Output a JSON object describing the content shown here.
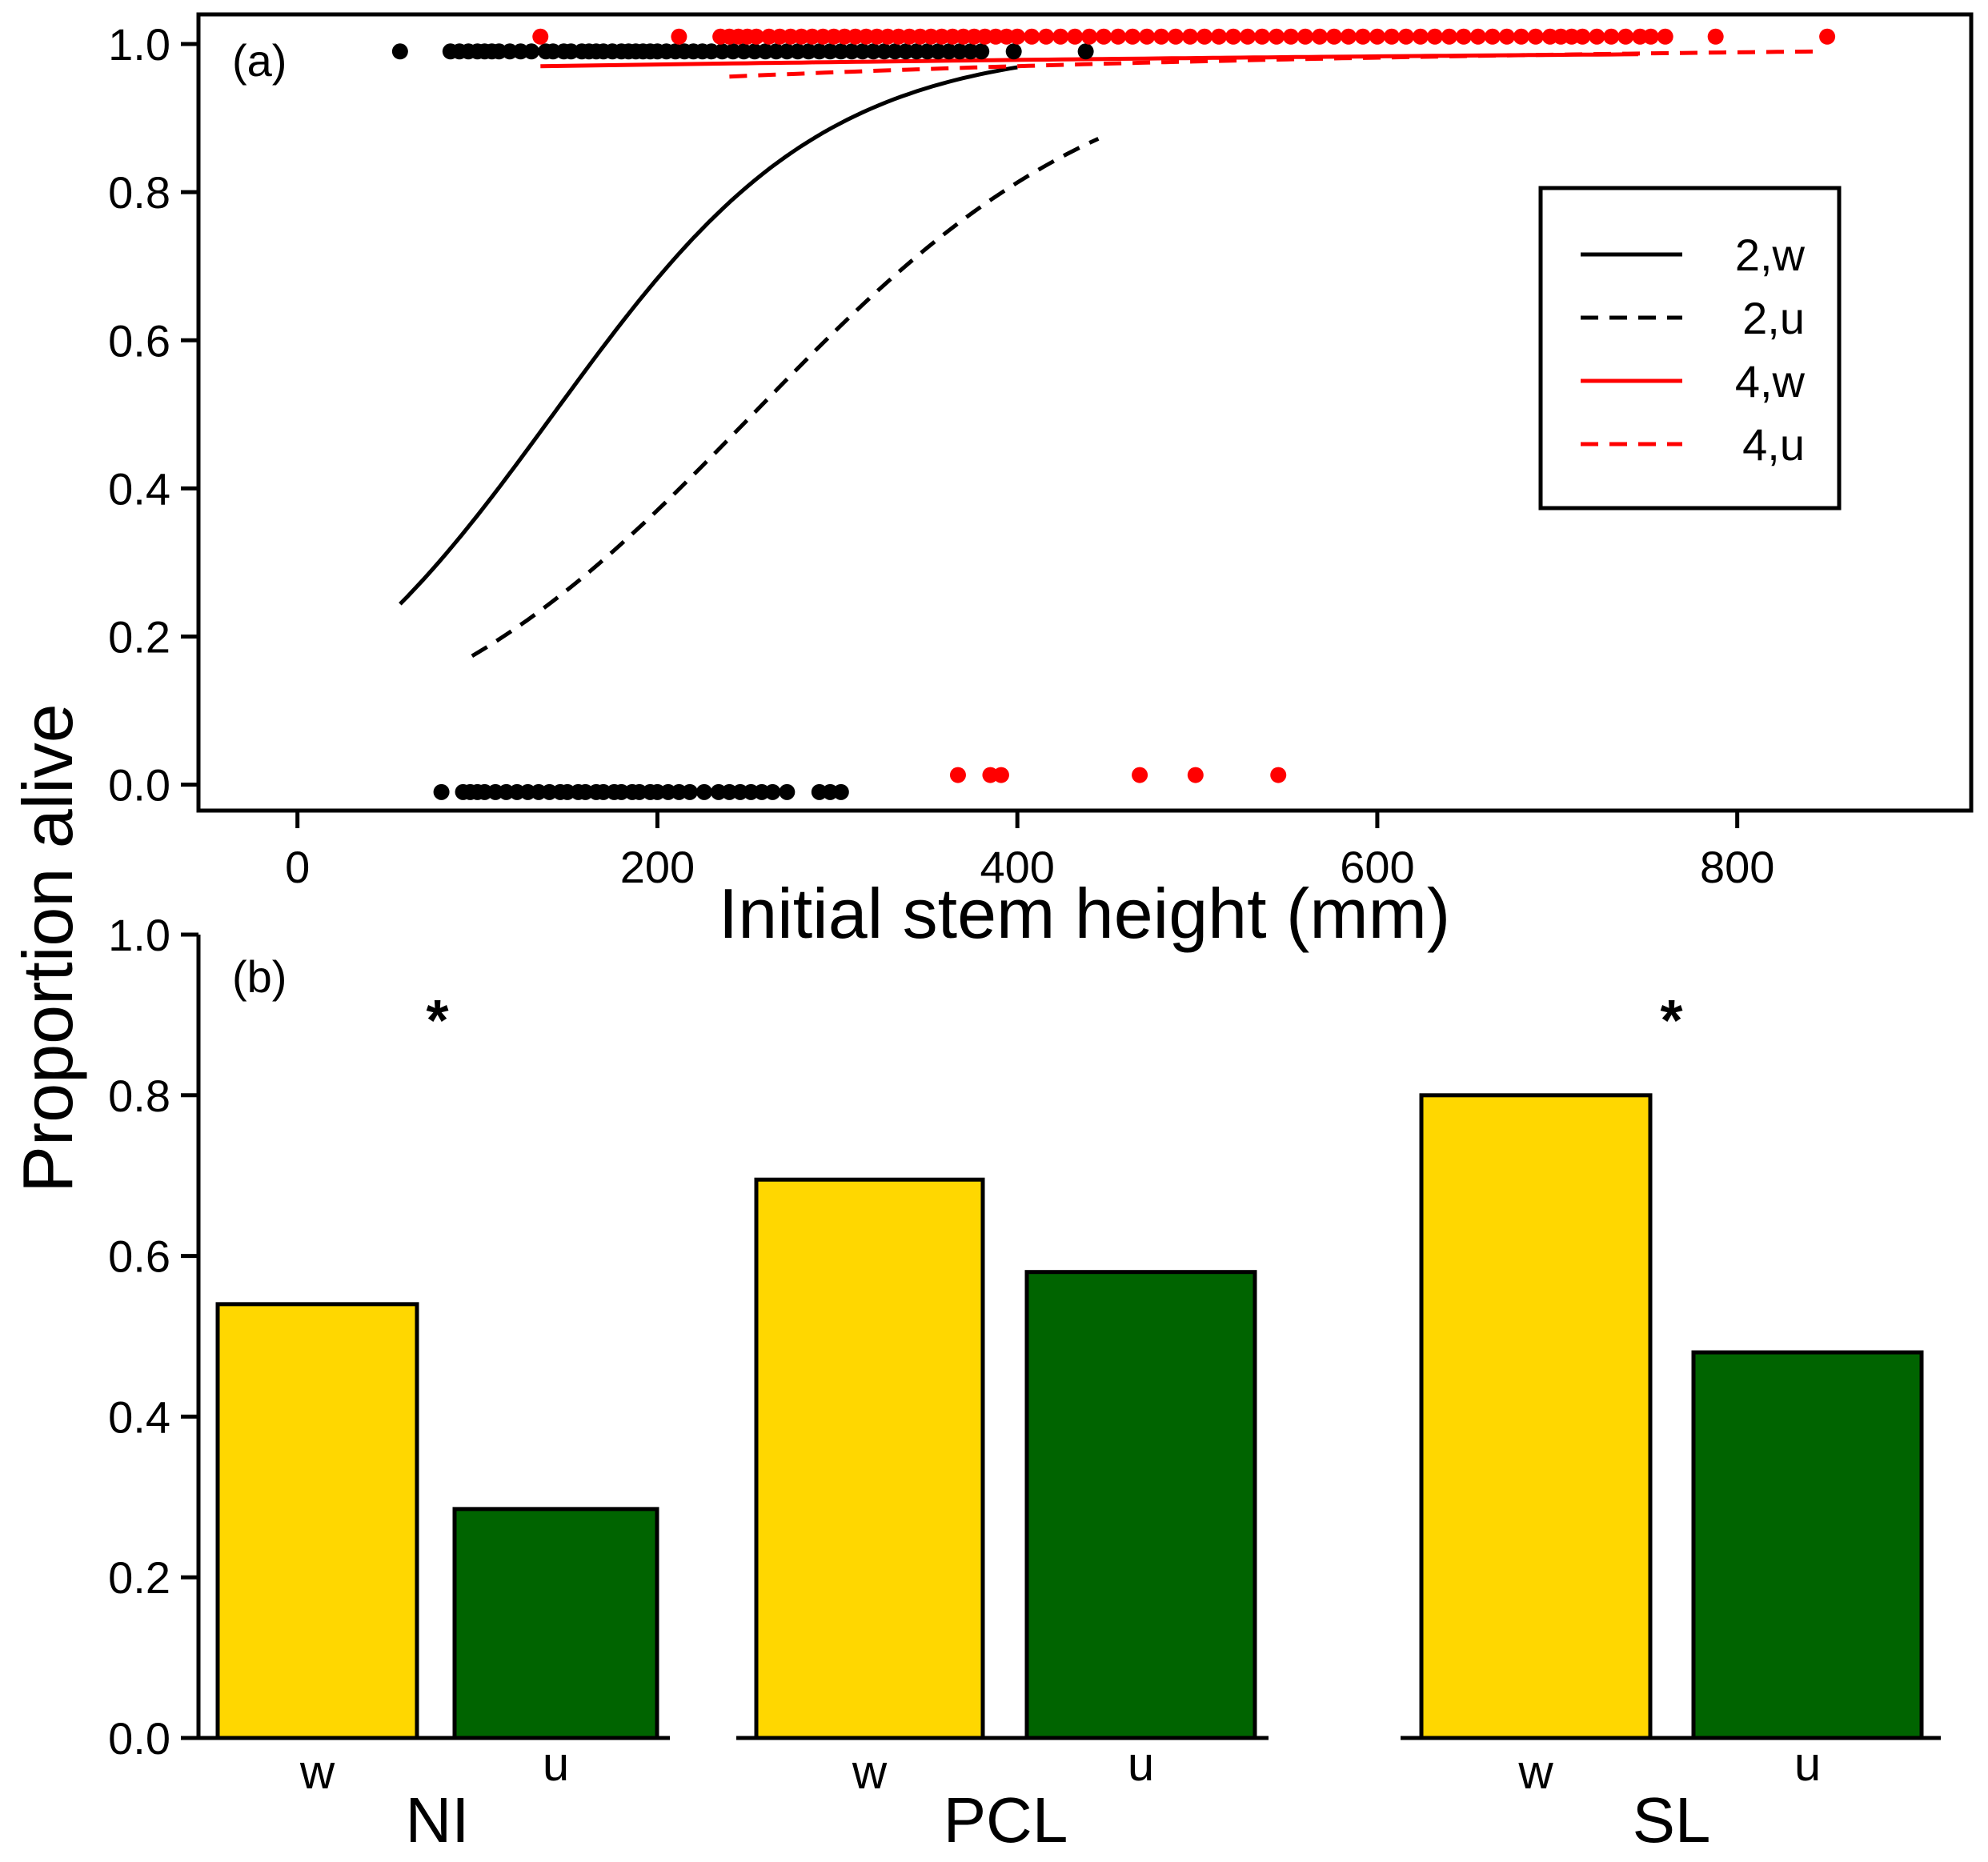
{
  "colors": {
    "black": "#000000",
    "red": "#ff0000",
    "yellow": "#ffd700",
    "green": "#006400"
  },
  "y_axis_title": "Proportion alive",
  "chart_data": [
    {
      "id": "a",
      "panel_label": "(a)",
      "type": "line",
      "xlabel": "Initial stem height (mm)",
      "ylabel": "Proportion alive",
      "xlim": [
        -55,
        930
      ],
      "ylim": [
        -0.035,
        1.04
      ],
      "x_ticks": [
        0,
        200,
        400,
        600,
        800
      ],
      "y_ticks": [
        0.0,
        0.2,
        0.4,
        0.6,
        0.8,
        1.0
      ],
      "x_tick_labels": [
        "0",
        "200",
        "400",
        "600",
        "800"
      ],
      "y_tick_labels": [
        "0.0",
        "0.2",
        "0.4",
        "0.6",
        "0.8",
        "1.0"
      ],
      "legend_position": "right",
      "legend": [
        {
          "label": "2,w",
          "color": "#000000",
          "dash": false
        },
        {
          "label": "2,u",
          "color": "#000000",
          "dash": true
        },
        {
          "label": "4,w",
          "color": "#ff0000",
          "dash": false
        },
        {
          "label": "4,u",
          "color": "#ff0000",
          "dash": true
        }
      ],
      "curves": [
        {
          "name": "2,w",
          "color": "#000000",
          "dash": false,
          "x_range": [
            57,
            400
          ],
          "intercept": -1.89,
          "slope": 0.0133
        },
        {
          "name": "2,u",
          "color": "#000000",
          "dash": true,
          "x_range": [
            97,
            445
          ],
          "intercept": -2.53,
          "slope": 0.01
        },
        {
          "name": "4,w",
          "color": "#ff0000",
          "dash": false,
          "x_range": [
            135,
            745
          ],
          "intercept": 3.3,
          "slope": 0.0013
        },
        {
          "name": "4,u",
          "color": "#ff0000",
          "dash": true,
          "x_range": [
            240,
            845
          ],
          "intercept": 2.48,
          "slope": 0.0025
        }
      ],
      "series": [
        {
          "name": "survival 2",
          "color": "#000000",
          "alive_y": 0.99,
          "dead_y": -0.01,
          "alive_x": [
            57,
            85,
            90,
            95,
            100,
            104,
            108,
            112,
            118,
            124,
            130,
            138,
            142,
            148,
            152,
            158,
            162,
            166,
            170,
            175,
            180,
            184,
            188,
            192,
            196,
            200,
            205,
            210,
            215,
            220,
            225,
            230,
            236,
            242,
            248,
            254,
            260,
            266,
            272,
            278,
            284,
            290,
            296,
            302,
            308,
            314,
            320,
            326,
            332,
            338,
            344,
            350,
            356,
            362,
            368,
            374,
            380,
            398,
            438
          ],
          "dead_x": [
            80,
            92,
            96,
            100,
            104,
            110,
            116,
            122,
            128,
            134,
            140,
            146,
            150,
            156,
            160,
            166,
            170,
            176,
            180,
            186,
            190,
            196,
            200,
            206,
            212,
            218,
            226,
            234,
            240,
            246,
            252,
            258,
            264,
            272,
            290,
            296,
            302
          ]
        },
        {
          "name": "survival 4",
          "color": "#ff0000",
          "alive_y": 1.01,
          "dead_y": 0.013,
          "alive_x": [
            135,
            212,
            235,
            240,
            245,
            250,
            255,
            262,
            268,
            274,
            280,
            286,
            292,
            298,
            304,
            310,
            316,
            322,
            328,
            334,
            340,
            346,
            352,
            358,
            364,
            370,
            376,
            382,
            388,
            394,
            400,
            408,
            416,
            424,
            432,
            440,
            448,
            456,
            464,
            472,
            480,
            488,
            496,
            504,
            512,
            520,
            528,
            536,
            544,
            552,
            560,
            568,
            576,
            584,
            592,
            600,
            608,
            616,
            624,
            632,
            640,
            648,
            656,
            664,
            672,
            680,
            688,
            696,
            702,
            708,
            714,
            722,
            730,
            738,
            746,
            752,
            760,
            788,
            850
          ],
          "dead_x": [
            367,
            385,
            391,
            468,
            499,
            545
          ]
        }
      ]
    },
    {
      "id": "b",
      "panel_label": "(b)",
      "type": "bar",
      "ylabel": "Proportion alive",
      "ylim": [
        0.0,
        1.0
      ],
      "y_ticks": [
        0.0,
        0.2,
        0.4,
        0.6,
        0.8,
        1.0
      ],
      "y_tick_labels": [
        "0.0",
        "0.2",
        "0.4",
        "0.6",
        "0.8",
        "1.0"
      ],
      "groups": [
        {
          "name": "NI",
          "significance": "*",
          "bars": [
            {
              "label": "w",
              "value": 0.54,
              "color": "#ffd700"
            },
            {
              "label": "u",
              "value": 0.285,
              "color": "#006400"
            }
          ]
        },
        {
          "name": "PCL",
          "significance": "",
          "bars": [
            {
              "label": "w",
              "value": 0.695,
              "color": "#ffd700"
            },
            {
              "label": "u",
              "value": 0.58,
              "color": "#006400"
            }
          ]
        },
        {
          "name": "SL",
          "significance": "*",
          "bars": [
            {
              "label": "w",
              "value": 0.8,
              "color": "#ffd700"
            },
            {
              "label": "u",
              "value": 0.48,
              "color": "#006400"
            }
          ]
        }
      ]
    }
  ]
}
